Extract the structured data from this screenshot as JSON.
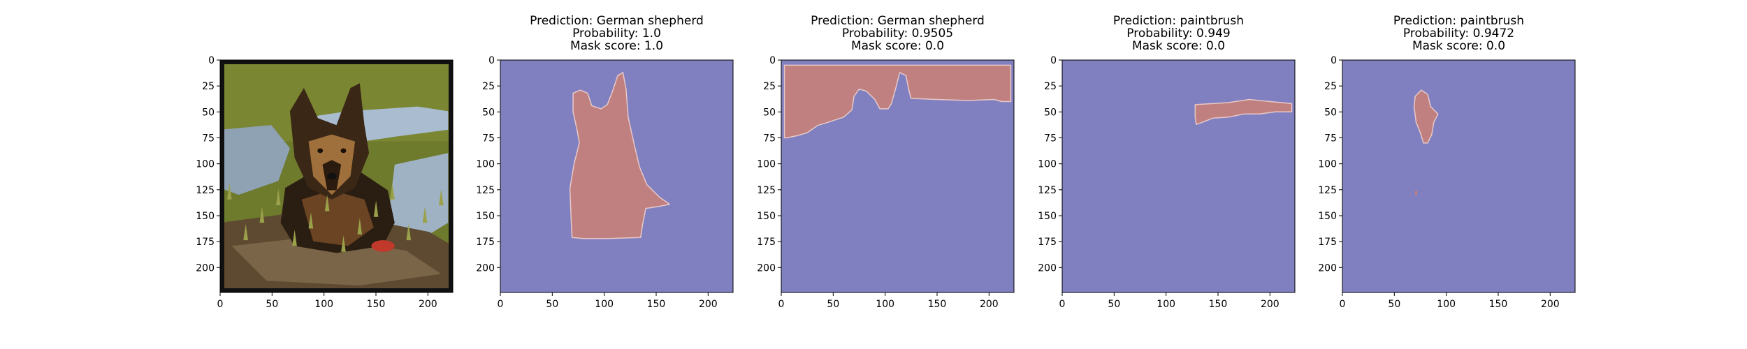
{
  "colors": {
    "background": "#8080c0",
    "mask": "#c08080",
    "axis": "#000000",
    "photo_border": "#111111"
  },
  "chart_data": [
    {
      "type": "image",
      "content": "photo of a German shepherd dog sitting in a muddy puddle on grass",
      "title_lines": [],
      "xticks": [
        0,
        50,
        100,
        150,
        200
      ],
      "yticks": [
        0,
        25,
        50,
        75,
        100,
        125,
        150,
        175,
        200
      ],
      "xlim": [
        0,
        224
      ],
      "ylim": [
        224,
        0
      ]
    },
    {
      "type": "mask",
      "title_lines": [
        "Prediction: German shepherd",
        "Probability: 1.0",
        "Mask score: 1.0"
      ],
      "xticks": [
        0,
        50,
        100,
        150,
        200
      ],
      "yticks": [
        0,
        25,
        50,
        75,
        100,
        125,
        150,
        175,
        200
      ],
      "xlim": [
        0,
        224
      ],
      "ylim": [
        224,
        0
      ],
      "mask_region": [
        [
          70,
          32
        ],
        [
          77,
          29
        ],
        [
          84,
          32
        ],
        [
          88,
          44
        ],
        [
          97,
          47
        ],
        [
          103,
          43
        ],
        [
          108,
          30
        ],
        [
          113,
          15
        ],
        [
          118,
          12
        ],
        [
          121,
          28
        ],
        [
          123,
          55
        ],
        [
          129,
          82
        ],
        [
          134,
          103
        ],
        [
          141,
          120
        ],
        [
          153,
          132
        ],
        [
          163,
          139
        ],
        [
          153,
          141
        ],
        [
          140,
          143
        ],
        [
          137,
          158
        ],
        [
          135,
          171
        ],
        [
          105,
          172
        ],
        [
          80,
          172
        ],
        [
          69,
          171
        ],
        [
          68,
          150
        ],
        [
          67,
          124
        ],
        [
          71,
          100
        ],
        [
          76,
          80
        ],
        [
          74,
          68
        ],
        [
          70,
          50
        ]
      ]
    },
    {
      "type": "mask",
      "title_lines": [
        "Prediction: German shepherd",
        "Probability: 0.9505",
        "Mask score: 0.0"
      ],
      "xticks": [
        0,
        50,
        100,
        150,
        200
      ],
      "yticks": [
        0,
        25,
        50,
        75,
        100,
        125,
        150,
        175,
        200
      ],
      "xlim": [
        0,
        224
      ],
      "ylim": [
        224,
        0
      ],
      "mask_region": [
        [
          3,
          5
        ],
        [
          221,
          5
        ],
        [
          221,
          40
        ],
        [
          212,
          40
        ],
        [
          205,
          38
        ],
        [
          180,
          39
        ],
        [
          150,
          38
        ],
        [
          125,
          37
        ],
        [
          123,
          30
        ],
        [
          120,
          15
        ],
        [
          114,
          12
        ],
        [
          110,
          28
        ],
        [
          106,
          42
        ],
        [
          103,
          47
        ],
        [
          95,
          47
        ],
        [
          90,
          38
        ],
        [
          82,
          30
        ],
        [
          75,
          28
        ],
        [
          70,
          35
        ],
        [
          68,
          48
        ],
        [
          60,
          55
        ],
        [
          45,
          60
        ],
        [
          35,
          63
        ],
        [
          25,
          70
        ],
        [
          15,
          73
        ],
        [
          5,
          75
        ],
        [
          3,
          75
        ]
      ]
    },
    {
      "type": "mask",
      "title_lines": [
        "Prediction: paintbrush",
        "Probability: 0.949",
        "Mask score: 0.0"
      ],
      "xticks": [
        0,
        50,
        100,
        150,
        200
      ],
      "yticks": [
        0,
        25,
        50,
        75,
        100,
        125,
        150,
        175,
        200
      ],
      "xlim": [
        0,
        224
      ],
      "ylim": [
        224,
        0
      ],
      "mask_region": [
        [
          128,
          43
        ],
        [
          145,
          42
        ],
        [
          160,
          41
        ],
        [
          180,
          38
        ],
        [
          200,
          40
        ],
        [
          221,
          42
        ],
        [
          221,
          50
        ],
        [
          205,
          50
        ],
        [
          190,
          52
        ],
        [
          175,
          52
        ],
        [
          160,
          55
        ],
        [
          145,
          56
        ],
        [
          135,
          60
        ],
        [
          129,
          62
        ],
        [
          128,
          55
        ]
      ]
    },
    {
      "type": "mask",
      "title_lines": [
        "Prediction: paintbrush",
        "Probability: 0.9472",
        "Mask score: 0.0"
      ],
      "xticks": [
        0,
        50,
        100,
        150,
        200
      ],
      "yticks": [
        0,
        25,
        50,
        75,
        100,
        125,
        150,
        175,
        200
      ],
      "xlim": [
        0,
        224
      ],
      "ylim": [
        224,
        0
      ],
      "mask_region": [
        [
          70,
          35
        ],
        [
          76,
          29
        ],
        [
          82,
          33
        ],
        [
          85,
          45
        ],
        [
          92,
          52
        ],
        [
          88,
          60
        ],
        [
          86,
          72
        ],
        [
          82,
          80
        ],
        [
          78,
          80
        ],
        [
          75,
          70
        ],
        [
          71,
          60
        ],
        [
          69,
          45
        ]
      ],
      "mask_spot": [
        [
          70,
          126
        ],
        [
          72,
          126
        ],
        [
          72,
          130
        ],
        [
          70,
          130
        ]
      ]
    }
  ]
}
